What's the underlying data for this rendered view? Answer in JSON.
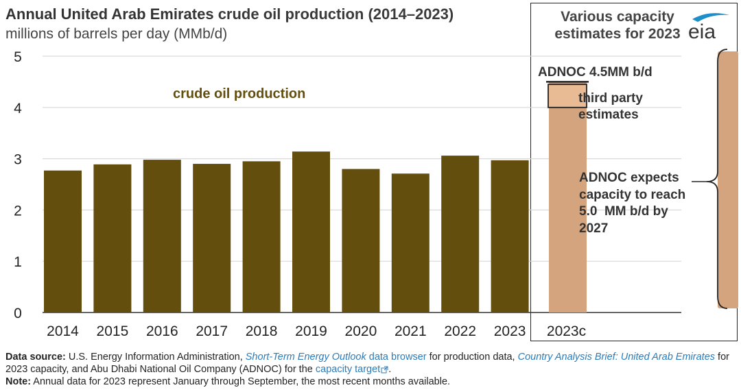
{
  "header": {
    "title_part1": "Annual United Arab Emirates ",
    "title_part2": "crude oil production (2014–2023)",
    "subtitle": "millions of barrels per day (MMb/d)"
  },
  "capacity_panel": {
    "title_line1": "Various capacity",
    "title_line2": "estimates for 2023",
    "adnoc_label": "ADNOC 4.5MM b/d",
    "third_party_line1": "third party",
    "third_party_line2": "estimates",
    "expects_line1": "ADNOC expects",
    "expects_line2": "capacity to reach",
    "expects_line3": "5.0  MM b/d by",
    "expects_line4": "2027"
  },
  "logo": {
    "text": "eia",
    "icon": "eia-swoosh-icon"
  },
  "series_label": "crude oil production",
  "colors": {
    "bar": "#634e0e",
    "capacity_bar": "#d4a47f",
    "third_party_box": "#e8bb94",
    "series_label": "#634e0e",
    "grid": "#d9d9d9",
    "link": "#2b7bb9"
  },
  "chart_data": {
    "type": "bar",
    "categories": [
      "2014",
      "2015",
      "2016",
      "2017",
      "2018",
      "2019",
      "2020",
      "2021",
      "2022",
      "2023"
    ],
    "values": [
      2.77,
      2.89,
      2.98,
      2.9,
      2.95,
      3.14,
      2.8,
      2.71,
      3.06,
      2.97
    ],
    "capacity": {
      "category": "2023c",
      "adnoc_value": 4.5,
      "third_party_range": [
        4.0,
        4.45
      ]
    },
    "yticks": [
      "0",
      "1",
      "2",
      "3",
      "4",
      "5"
    ],
    "ylim": [
      0,
      5
    ],
    "grid": true
  },
  "footer": {
    "source_label": "Data source:",
    "source_t1": " U.S. Energy Information Administration, ",
    "source_l1": "Short-Term Energy Outlook",
    "source_l1b": " data browser",
    "source_t2": " for production data, ",
    "source_l2": "Country Analysis Brief: United Arab Emirates",
    "source_t3": " for 2023 capacity, and Abu Dhabi National Oil Company (ADNOC) for the ",
    "source_l3": "capacity target",
    "source_t4": ".",
    "note_label": "Note:",
    "note_text": " Annual data for 2023 represent January through September, the most recent months available."
  }
}
